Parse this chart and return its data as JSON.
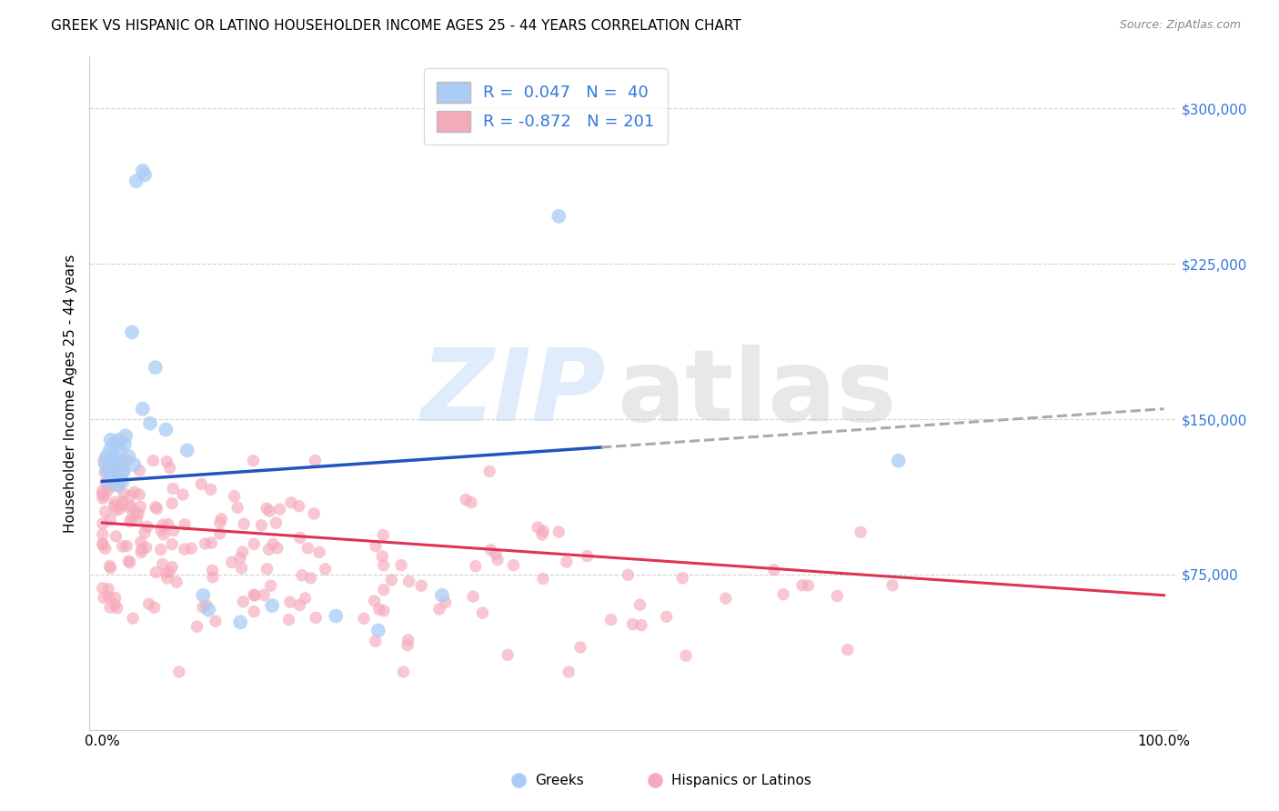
{
  "title": "GREEK VS HISPANIC OR LATINO HOUSEHOLDER INCOME AGES 25 - 44 YEARS CORRELATION CHART",
  "source": "Source: ZipAtlas.com",
  "ylabel": "Householder Income Ages 25 - 44 years",
  "xlim": [
    -0.012,
    1.012
  ],
  "ylim": [
    0,
    325000
  ],
  "yticks": [
    0,
    75000,
    150000,
    225000,
    300000
  ],
  "ytick_labels": [
    "",
    "$75,000",
    "$150,000",
    "$225,000",
    "$300,000"
  ],
  "legend_entry1": "R =  0.047   N =  40",
  "legend_entry2": "R = -0.872   N = 201",
  "legend_label1": "Greeks",
  "legend_label2": "Hispanics or Latinos",
  "blue_color": "#aaccf5",
  "pink_color": "#f5aabb",
  "blue_line_color": "#2255bb",
  "pink_line_color": "#dd3355",
  "dashed_line_color": "#aaaaaa",
  "blue_r": 0.047,
  "pink_r": -0.872,
  "blue_n": 40,
  "pink_n": 201,
  "title_fontsize": 11,
  "source_fontsize": 9,
  "axis_label_fontsize": 11,
  "tick_fontsize": 11,
  "legend_fontsize": 13
}
